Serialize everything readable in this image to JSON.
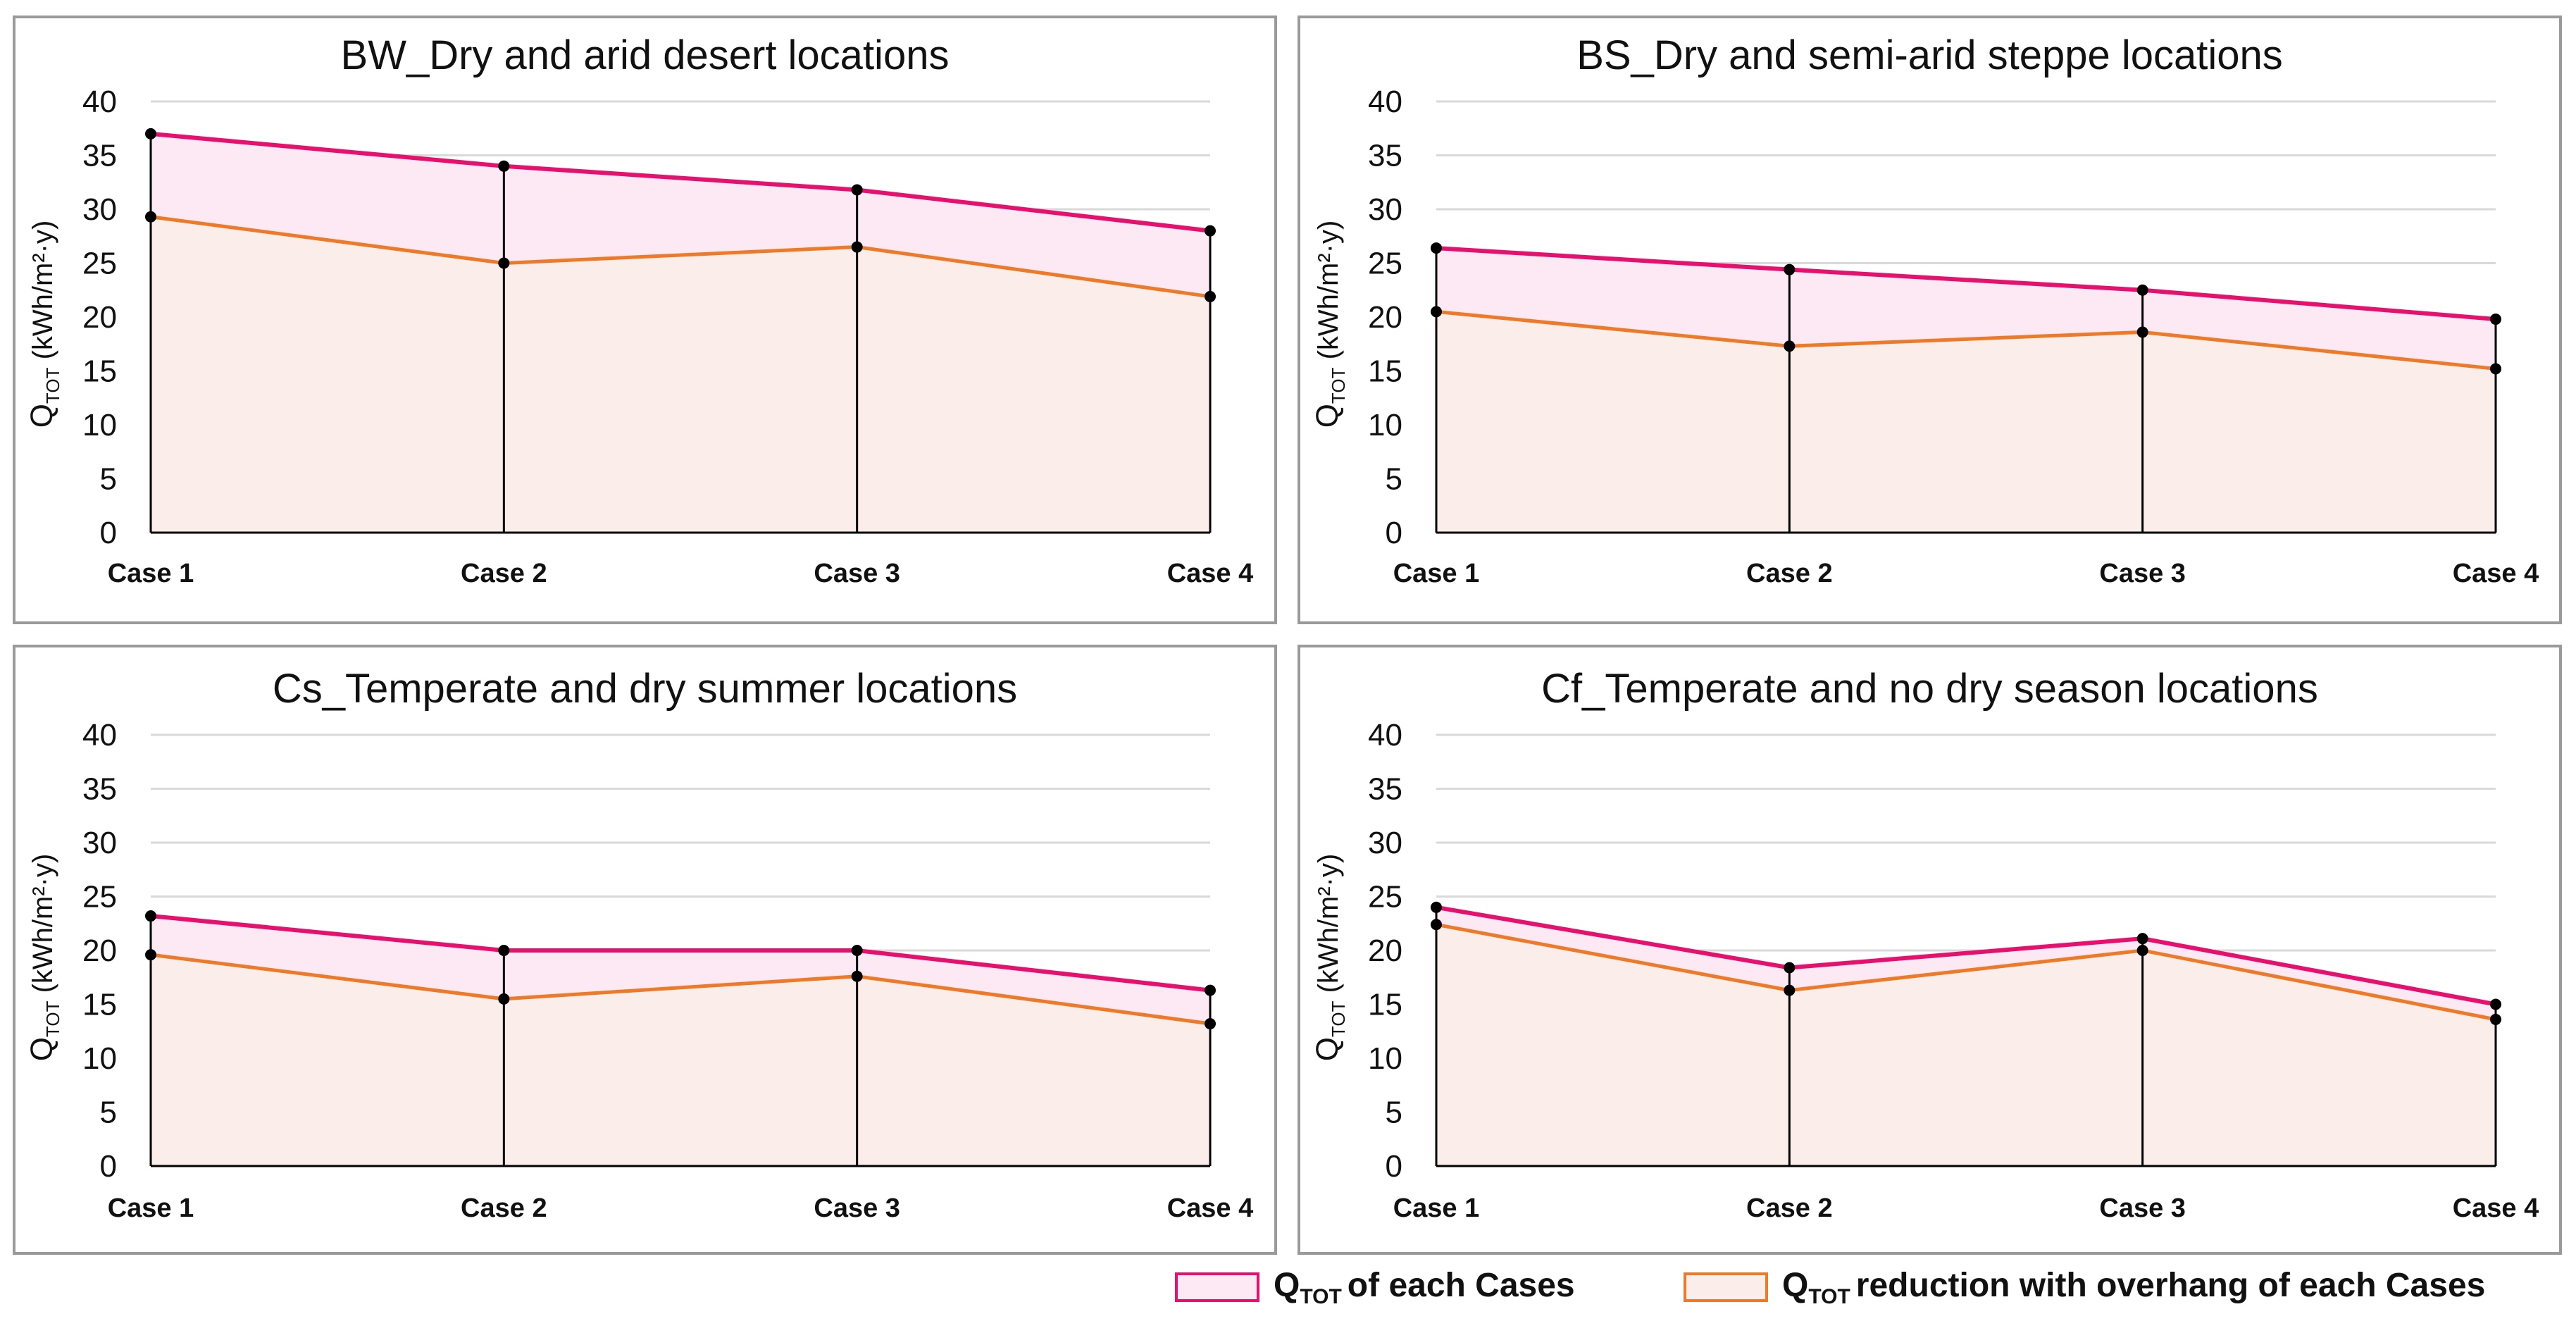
{
  "colors": {
    "total_line": "#e8106f",
    "total_fill": "#fce9f3",
    "reduction_line": "#ee7a28",
    "reduction_fill": "#fbeeea",
    "grid": "#d9d9d9",
    "axis": "#000000",
    "marker": "#000000"
  },
  "chart_data": [
    {
      "type": "area",
      "title": "BW_Dry and arid desert locations",
      "categories": [
        "Case 1",
        "Case 2",
        "Case 3",
        "Case 4"
      ],
      "ylabel_main": "Q",
      "ylabel_sub": "TOT",
      "ylabel_unit": " (kWh/m²·y)",
      "ylim": [
        0,
        40
      ],
      "yticks": [
        "0",
        "5",
        "10",
        "15",
        "20",
        "25",
        "30",
        "35",
        "40"
      ],
      "grid": true,
      "series": [
        {
          "name": "QTOT of each Cases",
          "values": [
            37,
            34,
            31.8,
            28
          ]
        },
        {
          "name": "QTOT reduction with overhang of each Cases",
          "values": [
            29.3,
            25,
            26.5,
            21.9
          ]
        }
      ]
    },
    {
      "type": "area",
      "title": "BS_Dry and semi-arid steppe locations",
      "categories": [
        "Case 1",
        "Case 2",
        "Case 3",
        "Case 4"
      ],
      "ylabel_main": "Q",
      "ylabel_sub": "TOT",
      "ylabel_unit": " (kWh/m²·y)",
      "ylim": [
        0,
        40
      ],
      "yticks": [
        "0",
        "5",
        "10",
        "15",
        "20",
        "25",
        "30",
        "35",
        "40"
      ],
      "grid": true,
      "series": [
        {
          "name": "QTOT of each Cases",
          "values": [
            26.4,
            24.4,
            22.5,
            19.8
          ]
        },
        {
          "name": "QTOT reduction with overhang of each Cases",
          "values": [
            20.5,
            17.3,
            18.6,
            15.2
          ]
        }
      ]
    },
    {
      "type": "area",
      "title": "Cs_Temperate and dry summer locations",
      "categories": [
        "Case 1",
        "Case 2",
        "Case 3",
        "Case 4"
      ],
      "ylabel_main": "Q",
      "ylabel_sub": "TOT",
      "ylabel_unit": " (kWh/m²·y)",
      "ylim": [
        0,
        40
      ],
      "yticks": [
        "0",
        "5",
        "10",
        "15",
        "20",
        "25",
        "30",
        "35",
        "40"
      ],
      "grid": true,
      "series": [
        {
          "name": "QTOT of each Cases",
          "values": [
            23.2,
            20,
            20,
            16.3
          ]
        },
        {
          "name": "QTOT reduction with overhang of each Cases",
          "values": [
            19.6,
            15.5,
            17.6,
            13.2
          ]
        }
      ]
    },
    {
      "type": "area",
      "title": "Cf_Temperate and no dry season locations",
      "categories": [
        "Case 1",
        "Case 2",
        "Case 3",
        "Case 4"
      ],
      "ylabel_main": "Q",
      "ylabel_sub": "TOT",
      "ylabel_unit": " (kWh/m²·y)",
      "ylim": [
        0,
        40
      ],
      "yticks": [
        "0",
        "5",
        "10",
        "15",
        "20",
        "25",
        "30",
        "35",
        "40"
      ],
      "grid": true,
      "series": [
        {
          "name": "QTOT of each Cases",
          "values": [
            24,
            18.4,
            21.1,
            15
          ]
        },
        {
          "name": "QTOT reduction with overhang of each Cases",
          "values": [
            22.4,
            16.3,
            20,
            13.6
          ]
        }
      ]
    }
  ],
  "legend": {
    "item1_main": "Q",
    "item1_sub": "TOT",
    "item1_text": "of each Cases",
    "item2_main": "Q",
    "item2_sub": "TOT",
    "item2_text": "reduction with overhang of each Cases"
  }
}
